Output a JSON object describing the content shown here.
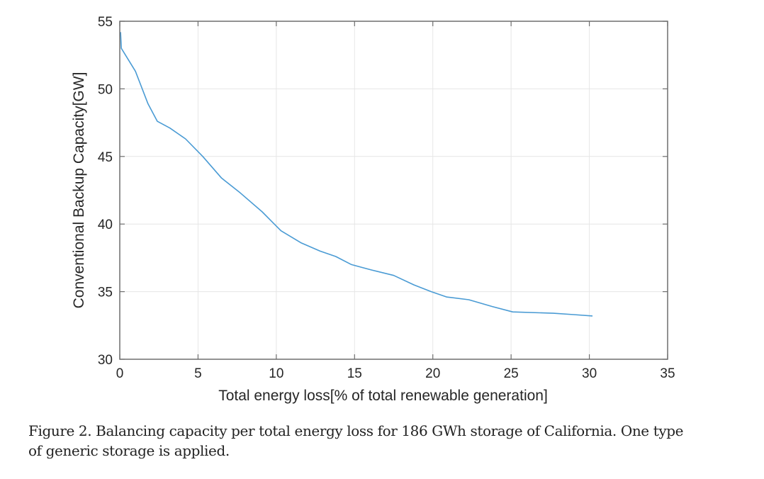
{
  "chart_data": {
    "type": "line",
    "title": "",
    "xlabel": "Total energy loss[% of total renewable generation]",
    "ylabel": "Conventional Backup Capacity[GW]",
    "xlim": [
      0,
      35
    ],
    "ylim": [
      30,
      55
    ],
    "xticks": [
      0,
      5,
      10,
      15,
      20,
      25,
      30,
      35
    ],
    "yticks": [
      30,
      35,
      40,
      45,
      50,
      55
    ],
    "grid": true,
    "legend": null,
    "series": [
      {
        "name": "Backup capacity",
        "color": "#4a9bd4",
        "x": [
          0.05,
          0.1,
          1.0,
          1.8,
          2.4,
          3.2,
          4.2,
          5.3,
          6.5,
          7.7,
          9.1,
          10.3,
          11.6,
          12.8,
          13.8,
          14.8,
          16.1,
          17.5,
          18.8,
          19.9,
          20.9,
          22.3,
          23.8,
          25.1,
          27.7,
          29.0,
          30.2
        ],
        "y": [
          54.2,
          53.0,
          51.3,
          48.9,
          47.6,
          47.1,
          46.3,
          45.0,
          43.4,
          42.3,
          40.9,
          39.5,
          38.6,
          38.0,
          37.6,
          37.0,
          36.6,
          36.2,
          35.5,
          35.0,
          34.6,
          34.4,
          33.9,
          33.5,
          33.4,
          33.3,
          33.2
        ]
      }
    ]
  },
  "caption": {
    "line1": "Figure 2. Balancing capacity per total energy loss for 186 GWh storage of California. One type",
    "line2": "of generic storage is applied."
  },
  "colors": {
    "axis": "#6e6e6e",
    "grid": "#e6e6e6",
    "line": "#4a9bd4"
  }
}
